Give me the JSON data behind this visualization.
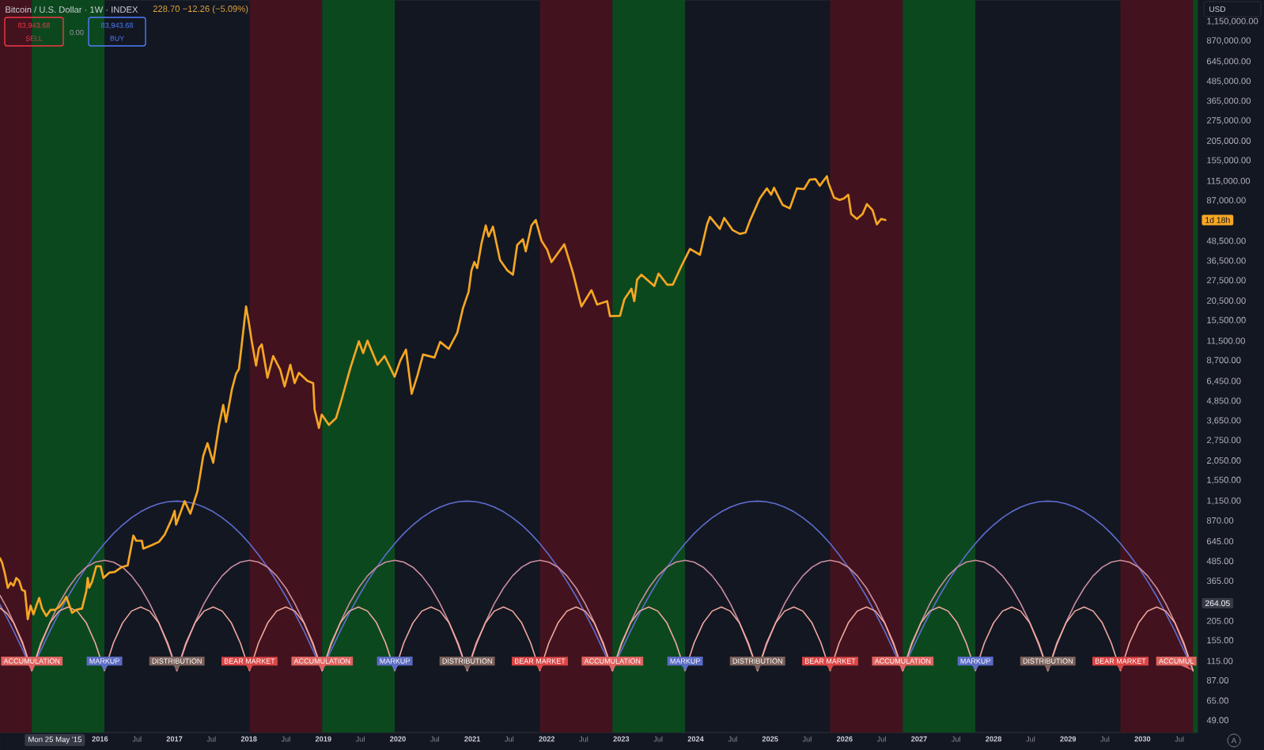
{
  "chart_data": {
    "type": "line",
    "title": "Bitcoin / U.S. Dollar · 1W · INDEX",
    "subtitle": "228.70 −12.26 (−5.09%)",
    "x": [
      "2014-08-29",
      "2014-10-02",
      "2014-11-04",
      "2014-12-18",
      "2015-02-01",
      "2015-03-17",
      "2015-05-01",
      "2015-06-14",
      "2015-07-29",
      "2015-09-11",
      "2015-10-26",
      "2015-12-09",
      "2016-01-23",
      "2016-03-07",
      "2016-04-21",
      "2016-06-04",
      "2016-07-19",
      "2016-09-01",
      "2016-10-16",
      "2016-11-29",
      "2017-01-13",
      "2017-02-26",
      "2017-04-12",
      "2017-05-26",
      "2017-07-10",
      "2017-08-23",
      "2017-10-07",
      "2017-11-20",
      "2018-01-04",
      "2018-02-17",
      "2018-04-03",
      "2018-05-17",
      "2018-07-01",
      "2018-08-14",
      "2018-09-28",
      "2018-11-11",
      "2018-12-26",
      "2019-02-08",
      "2019-03-25",
      "2019-05-08",
      "2019-06-22",
      "2019-08-05",
      "2019-09-19",
      "2019-11-02",
      "2019-12-17",
      "2020-01-30",
      "2020-03-15",
      "2020-04-28",
      "2020-06-12",
      "2020-07-26",
      "2020-09-09",
      "2020-10-23",
      "2020-12-07",
      "2021-01-20",
      "2021-03-06",
      "2021-04-19",
      "2021-06-03",
      "2021-07-17",
      "2021-08-31",
      "2021-10-14",
      "2021-11-28",
      "2022-01-11",
      "2022-02-25",
      "2022-04-10",
      "2022-05-25",
      "2022-07-08",
      "2022-08-22",
      "2022-10-05",
      "2022-11-19",
      "2023-01-02",
      "2023-02-16",
      "2023-04-01",
      "2023-05-16",
      "2023-06-29",
      "2023-08-13",
      "2023-09-26",
      "2023-11-10",
      "2023-12-24",
      "2024-02-07",
      "2024-03-22",
      "2024-05-06",
      "2024-06-19",
      "2024-08-03",
      "2024-09-16",
      "2024-10-31",
      "2024-12-14",
      "2025-01-28",
      "2025-03-13",
      "2025-04-27",
      "2025-06-10",
      "2025-07-25",
      "2025-09-07",
      "2025-10-22",
      "2025-12-05",
      "2026-01-19",
      "2026-03-04",
      "2026-04-18",
      "2026-06-01",
      "2026-07-16",
      "2026-08-29",
      "2026-10-13",
      "2026-11-26",
      "2027-01-10",
      "2027-02-23",
      "2027-04-09",
      "2027-05-23",
      "2027-07-07",
      "2027-08-20",
      "2027-10-04",
      "2027-11-17",
      "2028-01-01",
      "2028-02-14",
      "2028-03-30",
      "2028-05-13",
      "2028-06-27",
      "2028-08-10",
      "2028-09-24",
      "2028-11-07",
      "2028-12-22",
      "2029-02-04",
      "2029-03-21",
      "2029-05-04",
      "2029-06-18",
      "2029-08-01",
      "2029-09-15",
      "2029-10-29",
      "2029-12-13",
      "2030-01-26",
      "2030-03-12",
      "2030-04-25",
      "2030-06-09",
      "2030-07-23",
      "2030-09-06"
    ],
    "series": [
      {
        "color": "#5f6dd0",
        "values": [
          259,
          215,
          177,
          135,
          100,
          134,
          177,
          229,
          291,
          362,
          443,
          531,
          624,
          721,
          816,
          906,
          987,
          1055,
          1107,
          1139,
          1150,
          1139,
          1107,
          1055,
          987,
          906,
          816,
          721,
          624,
          531,
          443,
          362,
          291,
          229,
          177,
          134,
          100,
          134,
          177,
          229,
          291,
          362,
          443,
          531,
          624,
          721,
          816,
          906,
          987,
          1055,
          1107,
          1139,
          1150,
          1139,
          1107,
          1055,
          987,
          906,
          816,
          721,
          624,
          531,
          443,
          362,
          291,
          229,
          177,
          134,
          100,
          134,
          177,
          229,
          291,
          362,
          443,
          531,
          624,
          721,
          816,
          906,
          987,
          1055,
          1107,
          1139,
          1150,
          1139,
          1107,
          1055,
          987,
          906,
          816,
          721,
          624,
          531,
          443,
          362,
          291,
          229,
          177,
          134,
          100,
          134,
          177,
          229,
          291,
          362,
          443,
          531,
          624,
          721,
          816,
          906,
          987,
          1055,
          1107,
          1139,
          1150,
          1139,
          1107,
          1055,
          987,
          906,
          816,
          721,
          624,
          531,
          443,
          362,
          291,
          229,
          177,
          134,
          100
        ]
      },
      {
        "color": "#c98c9f",
        "values": [
          296,
          247,
          200,
          146,
          100,
          145,
          200,
          263,
          329,
          392,
          444,
          478,
          490,
          478,
          444,
          392,
          329,
          263,
          200,
          145,
          100,
          145,
          200,
          263,
          329,
          392,
          444,
          478,
          490,
          478,
          444,
          392,
          329,
          263,
          200,
          145,
          100,
          145,
          200,
          263,
          329,
          392,
          444,
          478,
          490,
          478,
          444,
          392,
          329,
          263,
          200,
          145,
          100,
          145,
          200,
          263,
          329,
          392,
          444,
          478,
          490,
          478,
          444,
          392,
          329,
          263,
          200,
          145,
          100,
          145,
          200,
          263,
          329,
          392,
          444,
          478,
          490,
          478,
          444,
          392,
          329,
          263,
          200,
          145,
          100,
          145,
          200,
          263,
          329,
          392,
          444,
          478,
          490,
          478,
          444,
          392,
          329,
          263,
          200,
          145,
          100,
          145,
          200,
          263,
          329,
          392,
          444,
          478,
          490,
          478,
          444,
          392,
          329,
          263,
          200,
          145,
          100,
          145,
          200,
          263,
          329,
          392,
          444,
          478,
          490,
          478,
          444,
          392,
          329,
          263,
          200,
          145,
          100
        ]
      },
      {
        "color": "#f2a99f",
        "values": [
          247,
          228,
          199,
          150,
          100,
          149,
          199,
          236,
          250,
          236,
          199,
          149,
          100,
          149,
          199,
          236,
          250,
          236,
          199,
          149,
          100,
          149,
          199,
          236,
          250,
          236,
          199,
          149,
          100,
          149,
          199,
          236,
          250,
          236,
          199,
          149,
          100,
          149,
          199,
          236,
          250,
          236,
          199,
          149,
          100,
          149,
          199,
          236,
          250,
          236,
          199,
          149,
          100,
          149,
          199,
          236,
          250,
          236,
          199,
          149,
          100,
          149,
          199,
          236,
          250,
          236,
          199,
          149,
          100,
          149,
          199,
          236,
          250,
          236,
          199,
          149,
          100,
          149,
          199,
          236,
          250,
          236,
          199,
          149,
          100,
          149,
          199,
          236,
          250,
          236,
          199,
          149,
          100,
          149,
          199,
          236,
          250,
          236,
          199,
          149,
          100,
          149,
          199,
          236,
          250,
          236,
          199,
          149,
          100,
          149,
          199,
          236,
          250,
          236,
          199,
          149,
          100,
          149,
          199,
          236,
          250,
          236,
          199,
          149,
          100,
          149,
          199,
          236,
          250,
          236,
          199,
          149,
          100
        ]
      },
      {
        "color": "#f5a623",
        "x": [
          "2014-08-29",
          "2014-09-08",
          "2014-09-22",
          "2014-10-06",
          "2014-10-20",
          "2014-11-03",
          "2014-11-17",
          "2014-12-01",
          "2014-12-15",
          "2014-12-29",
          "2015-01-12",
          "2015-01-26",
          "2015-02-09",
          "2015-02-23",
          "2015-03-09",
          "2015-03-23",
          "2015-04-13",
          "2015-05-04",
          "2015-05-25",
          "2015-06-15",
          "2015-07-06",
          "2015-07-20",
          "2015-08-17",
          "2015-09-07",
          "2015-10-05",
          "2015-10-26",
          "2015-11-02",
          "2015-11-09",
          "2015-11-23",
          "2015-12-14",
          "2016-01-04",
          "2016-01-18",
          "2016-02-15",
          "2016-03-14",
          "2016-04-18",
          "2016-05-16",
          "2016-06-13",
          "2016-06-27",
          "2016-07-25",
          "2016-08-01",
          "2016-09-12",
          "2016-10-17",
          "2016-11-14",
          "2016-12-19",
          "2017-01-02",
          "2017-01-09",
          "2017-02-20",
          "2017-03-20",
          "2017-04-24",
          "2017-05-22",
          "2017-06-12",
          "2017-07-10",
          "2017-08-07",
          "2017-08-28",
          "2017-09-11",
          "2017-10-09",
          "2017-10-30",
          "2017-11-13",
          "2017-11-27",
          "2017-12-18",
          "2018-01-01",
          "2018-01-15",
          "2018-02-05",
          "2018-02-19",
          "2018-03-05",
          "2018-04-02",
          "2018-04-30",
          "2018-06-04",
          "2018-06-25",
          "2018-07-23",
          "2018-08-13",
          "2018-09-03",
          "2018-10-15",
          "2018-11-12",
          "2018-11-19",
          "2018-12-10",
          "2018-12-24",
          "2019-01-28",
          "2019-03-04",
          "2019-04-01",
          "2019-05-13",
          "2019-06-24",
          "2019-07-15",
          "2019-08-05",
          "2019-09-23",
          "2019-10-28",
          "2019-12-16",
          "2020-01-13",
          "2020-02-10",
          "2020-03-09",
          "2020-04-06",
          "2020-05-04",
          "2020-06-29",
          "2020-07-27",
          "2020-09-07",
          "2020-10-19",
          "2020-11-16",
          "2020-12-14",
          "2020-12-28",
          "2021-01-11",
          "2021-01-25",
          "2021-02-15",
          "2021-03-08",
          "2021-03-22",
          "2021-04-12",
          "2021-05-17",
          "2021-06-21",
          "2021-07-19",
          "2021-08-09",
          "2021-09-06",
          "2021-09-20",
          "2021-10-18",
          "2021-11-08",
          "2021-12-06",
          "2022-01-03",
          "2022-01-24",
          "2022-03-28",
          "2022-05-09",
          "2022-06-13",
          "2022-06-20",
          "2022-08-08",
          "2022-09-05",
          "2022-10-24",
          "2022-11-07",
          "2022-12-26",
          "2023-01-16",
          "2023-02-20",
          "2023-03-06",
          "2023-03-20",
          "2023-04-10",
          "2023-06-12",
          "2023-07-03",
          "2023-08-14",
          "2023-09-11",
          "2023-10-23",
          "2023-12-04",
          "2024-01-22",
          "2024-02-26",
          "2024-03-11",
          "2024-04-29",
          "2024-05-20",
          "2024-07-01",
          "2024-08-05",
          "2024-09-02",
          "2024-09-23",
          "2024-11-11",
          "2024-12-16",
          "2025-01-06",
          "2025-01-20",
          "2025-03-03",
          "2025-04-07",
          "2025-05-12",
          "2025-06-16",
          "2025-07-14",
          "2025-08-11",
          "2025-09-01",
          "2025-10-06",
          "2025-10-13",
          "2025-11-10",
          "2025-12-08",
          "2025-12-29",
          "2026-01-19",
          "2026-02-02",
          "2026-03-02",
          "2026-03-30",
          "2026-04-20",
          "2026-05-18",
          "2026-06-08",
          "2026-06-29",
          "2026-07-20"
        ],
        "values": [
          505,
          475,
          405,
          330,
          355,
          340,
          380,
          365,
          320,
          315,
          210,
          255,
          225,
          255,
          285,
          245,
          220,
          240,
          240,
          250,
          270,
          290,
          230,
          240,
          245,
          315,
          380,
          330,
          360,
          450,
          450,
          380,
          410,
          415,
          445,
          455,
          700,
          650,
          650,
          580,
          610,
          640,
          710,
          890,
          1000,
          820,
          1150,
          960,
          1330,
          2200,
          2650,
          2000,
          3400,
          4600,
          3600,
          5700,
          7200,
          7700,
          11000,
          19000,
          15000,
          11500,
          8100,
          10400,
          11000,
          6800,
          9300,
          7600,
          6000,
          8200,
          6300,
          7300,
          6500,
          6300,
          4300,
          3300,
          4000,
          3450,
          3800,
          5000,
          7800,
          11500,
          9700,
          11600,
          8200,
          9300,
          6900,
          8700,
          10200,
          5400,
          7000,
          9500,
          9100,
          11400,
          10300,
          13000,
          18500,
          23500,
          32000,
          36000,
          33000,
          47000,
          61000,
          52000,
          60000,
          37000,
          32000,
          30000,
          46000,
          50000,
          42000,
          61000,
          66000,
          49000,
          43000,
          36000,
          46500,
          31000,
          20500,
          19000,
          24000,
          19500,
          20500,
          16500,
          16600,
          21000,
          24500,
          20500,
          28000,
          30000,
          25500,
          30500,
          26000,
          26000,
          34000,
          43500,
          40000,
          62000,
          69000,
          58000,
          68000,
          57000,
          54000,
          55000,
          65000,
          90000,
          104000,
          95000,
          105000,
          82000,
          78000,
          104000,
          103000,
          118000,
          119000,
          108000,
          124000,
          113000,
          91000,
          88000,
          90000,
          95000,
          72000,
          67000,
          72000,
          83000,
          76000,
          62000,
          67000,
          66000
        ]
      }
    ],
    "xlim": [
      "2014-08-29",
      "2030-09-28"
    ],
    "ylim": [
      41,
      1570000
    ],
    "log": true,
    "xticks": [
      {
        "value": "2016-01-01",
        "label": "2016"
      },
      {
        "value": "2016-07-01",
        "label": "Jul"
      },
      {
        "value": "2017-01-01",
        "label": "2017"
      },
      {
        "value": "2017-07-01",
        "label": "Jul"
      },
      {
        "value": "2018-01-01",
        "label": "2018"
      },
      {
        "value": "2018-07-01",
        "label": "Jul"
      },
      {
        "value": "2019-01-01",
        "label": "2019"
      },
      {
        "value": "2019-07-01",
        "label": "Jul"
      },
      {
        "value": "2020-01-01",
        "label": "2020"
      },
      {
        "value": "2020-07-01",
        "label": "Jul"
      },
      {
        "value": "2021-01-01",
        "label": "2021"
      },
      {
        "value": "2021-07-01",
        "label": "Jul"
      },
      {
        "value": "2022-01-01",
        "label": "2022"
      },
      {
        "value": "2022-07-01",
        "label": "Jul"
      },
      {
        "value": "2023-01-01",
        "label": "2023"
      },
      {
        "value": "2023-07-01",
        "label": "Jul"
      },
      {
        "value": "2024-01-01",
        "label": "2024"
      },
      {
        "value": "2024-07-01",
        "label": "Jul"
      },
      {
        "value": "2025-01-01",
        "label": "2025"
      },
      {
        "value": "2025-07-01",
        "label": "Jul"
      },
      {
        "value": "2026-01-01",
        "label": "2026"
      },
      {
        "value": "2026-07-01",
        "label": "Jul"
      },
      {
        "value": "2027-01-01",
        "label": "2027"
      },
      {
        "value": "2027-07-01",
        "label": "Jul"
      },
      {
        "value": "2028-01-01",
        "label": "2028"
      },
      {
        "value": "2028-07-01",
        "label": "Jul"
      },
      {
        "value": "2029-01-01",
        "label": "2029"
      },
      {
        "value": "2029-07-01",
        "label": "Jul"
      },
      {
        "value": "2030-01-01",
        "label": "2030"
      },
      {
        "value": "2030-07-01",
        "label": "Jul"
      }
    ],
    "yticks": [
      {
        "value": 49,
        "label": "49.00"
      },
      {
        "value": 65,
        "label": "65.00"
      },
      {
        "value": 87,
        "label": "87.00"
      },
      {
        "value": 115,
        "label": "115.00"
      },
      {
        "value": 155,
        "label": "155.00"
      },
      {
        "value": 205,
        "label": "205.00"
      },
      {
        "value": 365,
        "label": "365.00"
      },
      {
        "value": 485,
        "label": "485.00"
      },
      {
        "value": 645,
        "label": "645.00"
      },
      {
        "value": 870,
        "label": "870.00"
      },
      {
        "value": 1150,
        "label": "1,150.00"
      },
      {
        "value": 1550,
        "label": "1,550.00"
      },
      {
        "value": 2050,
        "label": "2,050.00"
      },
      {
        "value": 2750,
        "label": "2,750.00"
      },
      {
        "value": 3650,
        "label": "3,650.00"
      },
      {
        "value": 4850,
        "label": "4,850.00"
      },
      {
        "value": 6450,
        "label": "6,450.00"
      },
      {
        "value": 8700,
        "label": "8,700.00"
      },
      {
        "value": 11500,
        "label": "11,500.00"
      },
      {
        "value": 15500,
        "label": "15,500.00"
      },
      {
        "value": 20500,
        "label": "20,500.00"
      },
      {
        "value": 27500,
        "label": "27,500.00"
      },
      {
        "value": 36500,
        "label": "36,500.00"
      },
      {
        "value": 48500,
        "label": "48,500.00"
      },
      {
        "value": 87000,
        "label": "87,000.00"
      },
      {
        "value": 115000,
        "label": "115,000.00"
      },
      {
        "value": 155000,
        "label": "155,000.00"
      },
      {
        "value": 205000,
        "label": "205,000.00"
      },
      {
        "value": 275000,
        "label": "275,000.00"
      },
      {
        "value": 365000,
        "label": "365,000.00"
      },
      {
        "value": 485000,
        "label": "485,000.00"
      },
      {
        "value": 645000,
        "label": "645,000.00"
      },
      {
        "value": 870000,
        "label": "870,000.00"
      },
      {
        "value": 1150000,
        "label": "1,150,000.00"
      }
    ],
    "bands": [
      {
        "axis": "x",
        "from": "2014-08-29",
        "to": "2015-02-01",
        "color": "#42131e"
      },
      {
        "axis": "x",
        "from": "2015-02-01",
        "to": "2016-01-23",
        "color": "#0c481e"
      },
      {
        "axis": "x",
        "from": "2018-01-04",
        "to": "2018-12-26",
        "color": "#42131e"
      },
      {
        "axis": "x",
        "from": "2018-12-26",
        "to": "2019-12-17",
        "color": "#0c481e"
      },
      {
        "axis": "x",
        "from": "2021-11-28",
        "to": "2022-11-19",
        "color": "#42131e"
      },
      {
        "axis": "x",
        "from": "2022-11-19",
        "to": "2023-11-10",
        "color": "#0c481e"
      },
      {
        "axis": "x",
        "from": "2025-10-22",
        "to": "2026-10-13",
        "color": "#42131e"
      },
      {
        "axis": "x",
        "from": "2026-10-13",
        "to": "2027-10-04",
        "color": "#0c481e"
      },
      {
        "axis": "x",
        "from": "2029-09-15",
        "to": "2030-09-06",
        "color": "#42131e"
      },
      {
        "axis": "x",
        "from": "2030-09-06",
        "to": "2030-09-28",
        "color": "#0c481e"
      }
    ],
    "annotations": [
      {
        "text": "ACCUMULATION",
        "x": "2015-02-01",
        "y": 100
      },
      {
        "text": "MARKUP",
        "x": "2016-01-23",
        "y": 100
      },
      {
        "text": "DISTRIBUTION",
        "x": "2017-01-13",
        "y": 100
      },
      {
        "text": "BEAR MARKET",
        "x": "2018-01-04",
        "y": 100
      },
      {
        "text": "ACCUMULATION",
        "x": "2018-12-26",
        "y": 100
      },
      {
        "text": "MARKUP",
        "x": "2019-12-17",
        "y": 100
      },
      {
        "text": "DISTRIBUTION",
        "x": "2020-12-07",
        "y": 100
      },
      {
        "text": "BEAR MARKET",
        "x": "2021-11-28",
        "y": 100
      },
      {
        "text": "ACCUMULATION",
        "x": "2022-11-19",
        "y": 100
      },
      {
        "text": "MARKUP",
        "x": "2023-11-10",
        "y": 100
      },
      {
        "text": "DISTRIBUTION",
        "x": "2024-10-31",
        "y": 100
      },
      {
        "text": "BEAR MARKET",
        "x": "2025-10-22",
        "y": 100
      },
      {
        "text": "ACCUMULATION",
        "x": "2026-10-13",
        "y": 100
      },
      {
        "text": "MARKUP",
        "x": "2027-10-04",
        "y": 100
      },
      {
        "text": "DISTRIBUTION",
        "x": "2028-09-24",
        "y": 100
      },
      {
        "text": "BEAR MARKET",
        "x": "2029-09-15",
        "y": 100
      },
      {
        "text": "ACCUMUL",
        "x": "2030-09-06",
        "y": 100
      },
      {
        "text": "Mon 25 May '15",
        "x": "2015-05-25"
      },
      {
        "text": "264.05",
        "y": 264.05
      },
      {
        "text": "1d 18h",
        "y": 66000
      },
      "83,943.68",
      "SELL",
      "0.00",
      "83,943.68",
      "BUY",
      "USD",
      "A"
    ]
  }
}
